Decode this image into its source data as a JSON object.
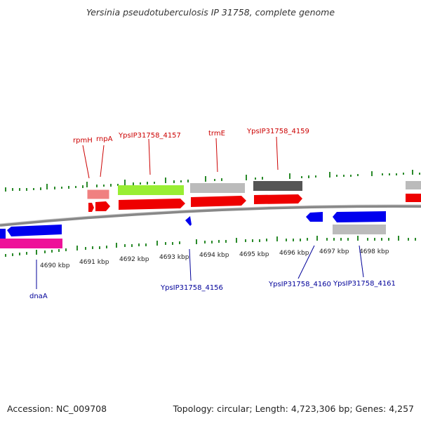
{
  "title": "Yersinia pseudotuberculosis IP 31758, complete genome",
  "footer": {
    "accession": "Accession: NC_009708",
    "topology": "Topology: circular; Length: 4,723,306 bp; Genes: 4,257"
  },
  "colors": {
    "backbone": "#8a8a8a",
    "tick": "#2a8a2a",
    "red_label": "#cc0000",
    "blue_label": "#000099"
  },
  "kbp_labels": [
    "4690 kbp",
    "4691 kbp",
    "4692 kbp",
    "4693 kbp",
    "4694 kbp",
    "4695 kbp",
    "4696 kbp",
    "4697 kbp",
    "4698 kbp"
  ],
  "top_labels": [
    "rpmH",
    "rnpA",
    "YpsIP31758_4157",
    "trmE",
    "YpsIP31758_4159"
  ],
  "bottom_labels": [
    "dnaA",
    "YpsIP31758_4156",
    "YpsIP31758_4160",
    "YpsIP31758_4161"
  ]
}
